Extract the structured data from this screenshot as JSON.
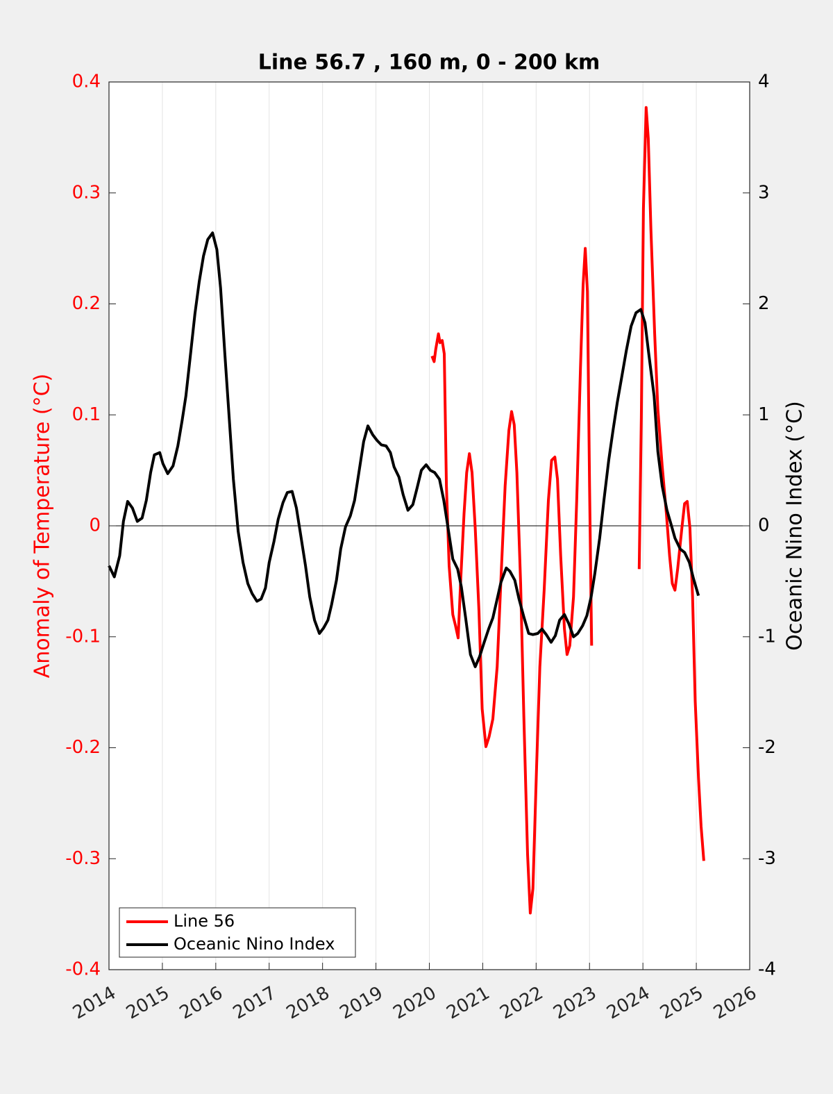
{
  "chart_data": {
    "type": "line",
    "title": "Line 56.7 , 160 m, 0 - 200 km",
    "ylabel": "Anomaly of Temperature (°C)",
    "y2label": "Oceanic Nino Index (°C)",
    "xlim": [
      2014,
      2026
    ],
    "xticks": [
      2014,
      2015,
      2016,
      2017,
      2018,
      2019,
      2020,
      2021,
      2022,
      2023,
      2024,
      2025,
      2026
    ],
    "ylim": [
      -0.4,
      0.4
    ],
    "yticks": [
      -0.4,
      -0.3,
      -0.2,
      -0.1,
      0,
      0.1,
      0.2,
      0.3,
      0.4
    ],
    "y2lim": [
      -4,
      4
    ],
    "y2ticks": [
      -4,
      -3,
      -2,
      -1,
      0,
      1,
      2,
      3,
      4
    ],
    "grid": true,
    "legend": "lower left",
    "ylabel_color": "#ff0000",
    "series": [
      {
        "name": "Line 56",
        "color": "#ff0000",
        "axis": "y",
        "x": [
          2020.05,
          2020.09,
          2020.12,
          2020.17,
          2020.2,
          2020.24,
          2020.28,
          2020.32,
          2020.37,
          2020.44,
          2020.49,
          2020.54,
          2020.59,
          2020.65,
          2020.7,
          2020.75,
          2020.8,
          2020.86,
          2020.93,
          2020.99,
          2021.06,
          2021.12,
          2021.19,
          2021.27,
          2021.35,
          2021.42,
          2021.49,
          2021.54,
          2021.59,
          2021.64,
          2021.71,
          2021.77,
          2021.84,
          2021.89,
          2021.94,
          2022.01,
          2022.07,
          2022.15,
          2022.23,
          2022.29,
          2022.35,
          2022.4,
          2022.46,
          2022.53,
          2022.58,
          2022.63,
          2022.7,
          2022.76,
          2022.83,
          2022.88,
          2022.92,
          2022.96,
          2023.0,
          2023.04,
          2023.5,
          2023.93,
          2023.97,
          2024.01,
          2024.06,
          2024.1,
          2024.15,
          2024.22,
          2024.28,
          2024.36,
          2024.44,
          2024.5,
          2024.55,
          2024.6,
          2024.65,
          2024.73,
          2024.78,
          2024.83,
          2024.88,
          2024.93,
          2024.98,
          2025.04,
          2025.09,
          2025.14
        ],
        "values": [
          0.153,
          0.148,
          0.159,
          0.173,
          0.165,
          0.167,
          0.155,
          0.036,
          -0.036,
          -0.08,
          -0.09,
          -0.101,
          -0.046,
          0.011,
          0.048,
          0.065,
          0.048,
          -0.002,
          -0.077,
          -0.165,
          -0.199,
          -0.19,
          -0.174,
          -0.127,
          -0.039,
          0.036,
          0.086,
          0.103,
          0.091,
          0.048,
          -0.052,
          -0.171,
          -0.296,
          -0.349,
          -0.327,
          -0.215,
          -0.127,
          -0.058,
          0.023,
          0.059,
          0.062,
          0.042,
          -0.027,
          -0.093,
          -0.116,
          -0.108,
          -0.064,
          0.023,
          0.142,
          0.217,
          0.25,
          0.211,
          0.036,
          -0.108,
          null,
          -0.039,
          0.098,
          0.286,
          0.377,
          0.349,
          0.267,
          0.173,
          0.105,
          0.054,
          0.011,
          -0.027,
          -0.052,
          -0.058,
          -0.039,
          -0.002,
          0.02,
          0.022,
          -0.002,
          -0.064,
          -0.158,
          -0.227,
          -0.271,
          -0.302
        ]
      },
      {
        "name": "Oceanic Nino Index",
        "color": "#000000",
        "axis": "y2",
        "x": [
          2014.0,
          2014.1,
          2014.2,
          2014.27,
          2014.35,
          2014.44,
          2014.53,
          2014.62,
          2014.7,
          2014.78,
          2014.85,
          2014.95,
          2015.01,
          2015.1,
          2015.2,
          2015.29,
          2015.37,
          2015.44,
          2015.53,
          2015.61,
          2015.69,
          2015.77,
          2015.85,
          2015.94,
          2016.02,
          2016.09,
          2016.17,
          2016.25,
          2016.33,
          2016.42,
          2016.51,
          2016.6,
          2016.68,
          2016.77,
          2016.85,
          2016.93,
          2017.0,
          2017.09,
          2017.17,
          2017.26,
          2017.34,
          2017.43,
          2017.51,
          2017.59,
          2017.68,
          2017.76,
          2017.85,
          2017.94,
          2018.02,
          2018.1,
          2018.17,
          2018.26,
          2018.34,
          2018.43,
          2018.52,
          2018.6,
          2018.68,
          2018.77,
          2018.85,
          2018.94,
          2019.02,
          2019.1,
          2019.19,
          2019.27,
          2019.34,
          2019.43,
          2019.51,
          2019.6,
          2019.69,
          2019.77,
          2019.85,
          2019.94,
          2020.02,
          2020.1,
          2020.19,
          2020.27,
          2020.36,
          2020.44,
          2020.53,
          2020.6,
          2020.68,
          2020.77,
          2020.86,
          2020.94,
          2021.02,
          2021.11,
          2021.19,
          2021.27,
          2021.34,
          2021.44,
          2021.51,
          2021.6,
          2021.68,
          2021.77,
          2021.86,
          2021.94,
          2022.03,
          2022.11,
          2022.19,
          2022.28,
          2022.36,
          2022.44,
          2022.53,
          2022.61,
          2022.7,
          2022.78,
          2022.87,
          2022.95,
          2023.03,
          2023.1,
          2023.19,
          2023.27,
          2023.36,
          2023.44,
          2023.52,
          2023.61,
          2023.69,
          2023.78,
          2023.87,
          2023.96,
          2024.04,
          2024.11,
          2024.21,
          2024.28,
          2024.36,
          2024.45,
          2024.53,
          2024.6,
          2024.7,
          2024.78,
          2024.87,
          2024.95,
          2025.04
        ],
        "values": [
          -0.36,
          -0.46,
          -0.27,
          0.04,
          0.22,
          0.16,
          0.04,
          0.07,
          0.23,
          0.48,
          0.64,
          0.66,
          0.56,
          0.47,
          0.54,
          0.72,
          0.95,
          1.17,
          1.56,
          1.91,
          2.2,
          2.43,
          2.58,
          2.64,
          2.49,
          2.14,
          1.55,
          0.98,
          0.42,
          -0.05,
          -0.33,
          -0.52,
          -0.61,
          -0.68,
          -0.66,
          -0.56,
          -0.33,
          -0.14,
          0.06,
          0.21,
          0.3,
          0.31,
          0.16,
          -0.08,
          -0.36,
          -0.64,
          -0.85,
          -0.97,
          -0.92,
          -0.85,
          -0.71,
          -0.49,
          -0.21,
          -0.01,
          0.09,
          0.23,
          0.48,
          0.76,
          0.9,
          0.82,
          0.77,
          0.73,
          0.72,
          0.66,
          0.53,
          0.44,
          0.28,
          0.14,
          0.19,
          0.34,
          0.5,
          0.55,
          0.5,
          0.48,
          0.42,
          0.23,
          -0.05,
          -0.3,
          -0.39,
          -0.55,
          -0.83,
          -1.16,
          -1.27,
          -1.18,
          -1.06,
          -0.93,
          -0.83,
          -0.66,
          -0.51,
          -0.38,
          -0.41,
          -0.49,
          -0.66,
          -0.82,
          -0.97,
          -0.98,
          -0.97,
          -0.93,
          -0.98,
          -1.05,
          -0.99,
          -0.85,
          -0.8,
          -0.88,
          -1.0,
          -0.97,
          -0.9,
          -0.81,
          -0.64,
          -0.43,
          -0.11,
          0.23,
          0.59,
          0.86,
          1.11,
          1.36,
          1.58,
          1.8,
          1.92,
          1.95,
          1.83,
          1.55,
          1.17,
          0.67,
          0.36,
          0.14,
          0.01,
          -0.11,
          -0.21,
          -0.24,
          -0.33,
          -0.48,
          -0.63
        ]
      }
    ]
  }
}
